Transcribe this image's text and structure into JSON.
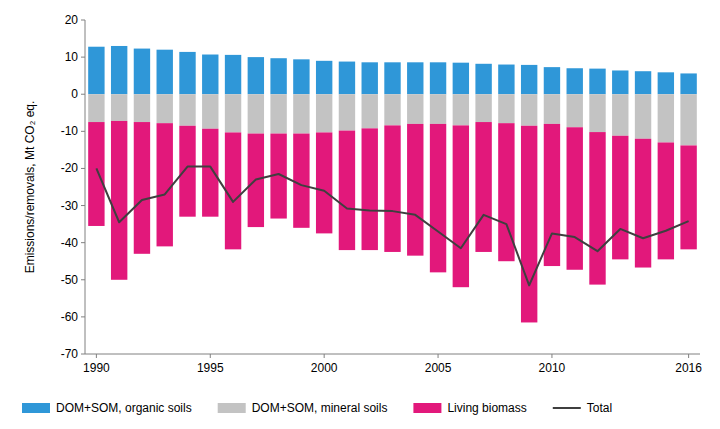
{
  "chart_data": {
    "type": "bar",
    "stacked": true,
    "y_label": "Emissions/removals, Mt CO₂ eq.",
    "categories": [
      1990,
      null,
      null,
      null,
      null,
      1995,
      null,
      null,
      null,
      null,
      2000,
      null,
      null,
      null,
      null,
      2005,
      null,
      null,
      null,
      null,
      2010,
      null,
      null,
      null,
      null,
      null,
      2016
    ],
    "series": [
      {
        "name": "DOM+SOM, organic soils",
        "color": "#2f97d8",
        "type": "bar",
        "values": [
          12.8,
          13.0,
          12.3,
          12.0,
          11.4,
          10.7,
          10.6,
          10.0,
          9.7,
          9.4,
          9.0,
          8.8,
          8.6,
          8.6,
          8.6,
          8.6,
          8.5,
          8.2,
          8.0,
          7.9,
          7.3,
          7.0,
          6.9,
          6.4,
          6.2,
          5.9,
          5.6
        ]
      },
      {
        "name": "DOM+SOM, mineral soils",
        "color": "#c3c3c3",
        "type": "bar",
        "values": [
          -7.5,
          -7.2,
          -7.5,
          -7.8,
          -8.5,
          -9.3,
          -10.3,
          -10.6,
          -10.6,
          -10.6,
          -10.3,
          -9.8,
          -9.2,
          -8.4,
          -8.0,
          -8.0,
          -8.4,
          -7.5,
          -7.8,
          -8.5,
          -8.0,
          -8.9,
          -10.2,
          -11.2,
          -12.0,
          -13.0,
          -13.8
        ]
      },
      {
        "name": "Living biomass",
        "color": "#e2187b",
        "type": "bar",
        "values": [
          -28.0,
          -42.8,
          -35.5,
          -33.2,
          -24.5,
          -23.7,
          -31.5,
          -25.2,
          -22.9,
          -25.4,
          -27.2,
          -32.2,
          -32.8,
          -34.1,
          -35.5,
          -40.0,
          -43.6,
          -35.0,
          -37.2,
          -53.0,
          -38.3,
          -38.4,
          -41.1,
          -33.3,
          -34.7,
          -31.5,
          -28.0
        ]
      },
      {
        "name": "Total",
        "color": "#3f3f3f",
        "type": "line",
        "values": [
          -20.0,
          -34.5,
          -28.5,
          -27.0,
          -19.5,
          -19.5,
          -29.0,
          -23.0,
          -21.5,
          -24.5,
          -26.0,
          -30.8,
          -31.3,
          -31.5,
          -32.5,
          -37.0,
          -41.5,
          -32.5,
          -35.0,
          -51.5,
          -37.5,
          -38.5,
          -42.3,
          -36.3,
          -38.8,
          -36.8,
          -34.2
        ]
      }
    ],
    "ylim": [
      -70,
      20
    ],
    "yticks": [
      -70,
      -60,
      -50,
      -40,
      -30,
      -20,
      -10,
      0,
      10,
      20
    ],
    "grid": false,
    "legend": "bottom"
  }
}
